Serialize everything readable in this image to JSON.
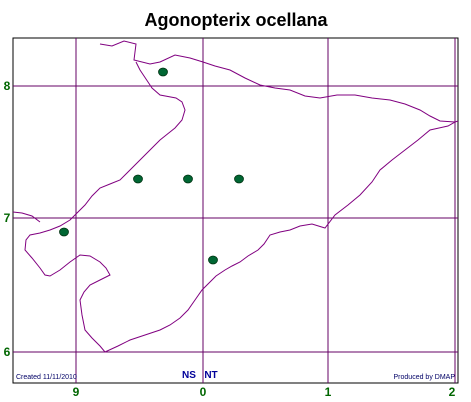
{
  "header": {
    "title": "Agonopterix ocellana"
  },
  "grid": {
    "y_labels": [
      "8",
      "7",
      "6"
    ],
    "x_labels": [
      "9",
      "0",
      "1",
      "2"
    ]
  },
  "squares": [
    "NS",
    "NT"
  ],
  "footer": {
    "created": "Created 11/11/2010",
    "produced": "Produced by DMAP"
  }
}
